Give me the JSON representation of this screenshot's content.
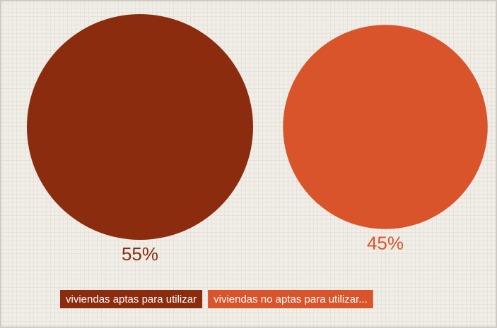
{
  "chart_data": {
    "type": "proportional-area",
    "categories": [
      "viviendas aptas para utilizar",
      "viviendas no aptas para utilizar..."
    ],
    "values": [
      55,
      45
    ],
    "value_labels": [
      "55%",
      "45%"
    ],
    "colors": [
      "#8b2c0e",
      "#d9542b"
    ]
  }
}
